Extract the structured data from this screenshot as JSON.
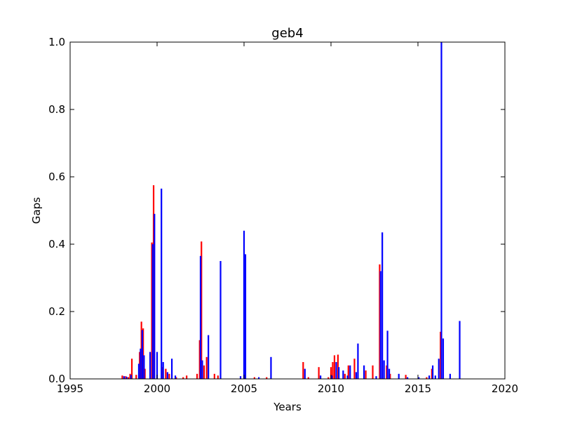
{
  "chart_data": {
    "type": "bar",
    "title": "geb4",
    "xlabel": "Years",
    "ylabel": "Gaps",
    "xlim": [
      1995,
      2020
    ],
    "ylim": [
      0,
      1.0
    ],
    "xticks": [
      "1995",
      "2000",
      "2005",
      "2010",
      "2015",
      "2020"
    ],
    "yticks": [
      "0.0",
      "0.2",
      "0.4",
      "0.6",
      "0.8",
      "1.0"
    ],
    "grid": false,
    "legend": "none",
    "series": [
      {
        "color": "#ff0000",
        "points": [
          {
            "x": 1998.0,
            "y": 0.01
          },
          {
            "x": 1998.2,
            "y": 0.008
          },
          {
            "x": 1998.35,
            "y": 0.005
          },
          {
            "x": 1998.45,
            "y": 0.015
          },
          {
            "x": 1998.55,
            "y": 0.06
          },
          {
            "x": 1998.8,
            "y": 0.012
          },
          {
            "x": 1999.0,
            "y": 0.08
          },
          {
            "x": 1999.1,
            "y": 0.17
          },
          {
            "x": 1999.2,
            "y": 0.15
          },
          {
            "x": 1999.3,
            "y": 0.03
          },
          {
            "x": 1999.7,
            "y": 0.405
          },
          {
            "x": 1999.8,
            "y": 0.575
          },
          {
            "x": 2000.3,
            "y": 0.035
          },
          {
            "x": 2000.5,
            "y": 0.03
          },
          {
            "x": 2000.7,
            "y": 0.015
          },
          {
            "x": 2001.1,
            "y": 0.005
          },
          {
            "x": 2001.5,
            "y": 0.005
          },
          {
            "x": 2001.7,
            "y": 0.01
          },
          {
            "x": 2002.3,
            "y": 0.015
          },
          {
            "x": 2002.45,
            "y": 0.115
          },
          {
            "x": 2002.55,
            "y": 0.408
          },
          {
            "x": 2002.7,
            "y": 0.04
          },
          {
            "x": 2002.85,
            "y": 0.065
          },
          {
            "x": 2003.3,
            "y": 0.015
          },
          {
            "x": 2003.5,
            "y": 0.01
          },
          {
            "x": 2005.6,
            "y": 0.005
          },
          {
            "x": 2006.3,
            "y": 0.005
          },
          {
            "x": 2008.4,
            "y": 0.05
          },
          {
            "x": 2008.7,
            "y": 0.005
          },
          {
            "x": 2009.3,
            "y": 0.035
          },
          {
            "x": 2009.85,
            "y": 0.005
          },
          {
            "x": 2010.0,
            "y": 0.035
          },
          {
            "x": 2010.1,
            "y": 0.05
          },
          {
            "x": 2010.2,
            "y": 0.07
          },
          {
            "x": 2010.4,
            "y": 0.072
          },
          {
            "x": 2010.8,
            "y": 0.015
          },
          {
            "x": 2011.0,
            "y": 0.04
          },
          {
            "x": 2011.35,
            "y": 0.06
          },
          {
            "x": 2012.0,
            "y": 0.025
          },
          {
            "x": 2012.4,
            "y": 0.04
          },
          {
            "x": 2012.8,
            "y": 0.34
          },
          {
            "x": 2013.2,
            "y": 0.04
          },
          {
            "x": 2013.4,
            "y": 0.015
          },
          {
            "x": 2014.3,
            "y": 0.012
          },
          {
            "x": 2015.5,
            "y": 0.005
          },
          {
            "x": 2015.8,
            "y": 0.03
          },
          {
            "x": 2016.3,
            "y": 0.14
          }
        ]
      },
      {
        "color": "#0000ff",
        "points": [
          {
            "x": 1998.1,
            "y": 0.008
          },
          {
            "x": 1998.25,
            "y": 0.006
          },
          {
            "x": 1998.5,
            "y": 0.012
          },
          {
            "x": 1998.95,
            "y": 0.045
          },
          {
            "x": 1999.05,
            "y": 0.09
          },
          {
            "x": 1999.15,
            "y": 0.145
          },
          {
            "x": 1999.25,
            "y": 0.07
          },
          {
            "x": 1999.6,
            "y": 0.08
          },
          {
            "x": 1999.75,
            "y": 0.4
          },
          {
            "x": 1999.85,
            "y": 0.49
          },
          {
            "x": 2000.0,
            "y": 0.08
          },
          {
            "x": 2000.25,
            "y": 0.565
          },
          {
            "x": 2000.35,
            "y": 0.05
          },
          {
            "x": 2000.6,
            "y": 0.02
          },
          {
            "x": 2000.85,
            "y": 0.06
          },
          {
            "x": 2001.05,
            "y": 0.01
          },
          {
            "x": 2002.5,
            "y": 0.365
          },
          {
            "x": 2002.6,
            "y": 0.055
          },
          {
            "x": 2002.95,
            "y": 0.13
          },
          {
            "x": 2003.65,
            "y": 0.35
          },
          {
            "x": 2004.8,
            "y": 0.008
          },
          {
            "x": 2005.0,
            "y": 0.44
          },
          {
            "x": 2005.08,
            "y": 0.37
          },
          {
            "x": 2005.85,
            "y": 0.005
          },
          {
            "x": 2006.55,
            "y": 0.065
          },
          {
            "x": 2008.5,
            "y": 0.03
          },
          {
            "x": 2009.4,
            "y": 0.01
          },
          {
            "x": 2010.05,
            "y": 0.01
          },
          {
            "x": 2010.3,
            "y": 0.05
          },
          {
            "x": 2010.45,
            "y": 0.035
          },
          {
            "x": 2010.7,
            "y": 0.025
          },
          {
            "x": 2010.95,
            "y": 0.01
          },
          {
            "x": 2011.1,
            "y": 0.04
          },
          {
            "x": 2011.45,
            "y": 0.02
          },
          {
            "x": 2011.55,
            "y": 0.105
          },
          {
            "x": 2011.9,
            "y": 0.04
          },
          {
            "x": 2012.6,
            "y": 0.008
          },
          {
            "x": 2012.85,
            "y": 0.32
          },
          {
            "x": 2012.95,
            "y": 0.435
          },
          {
            "x": 2013.05,
            "y": 0.055
          },
          {
            "x": 2013.25,
            "y": 0.143
          },
          {
            "x": 2013.35,
            "y": 0.03
          },
          {
            "x": 2013.9,
            "y": 0.015
          },
          {
            "x": 2014.4,
            "y": 0.005
          },
          {
            "x": 2015.05,
            "y": 0.005
          },
          {
            "x": 2015.65,
            "y": 0.01
          },
          {
            "x": 2015.85,
            "y": 0.04
          },
          {
            "x": 2016.0,
            "y": 0.01
          },
          {
            "x": 2016.2,
            "y": 0.06
          },
          {
            "x": 2016.35,
            "y": 1.0
          },
          {
            "x": 2016.45,
            "y": 0.12
          },
          {
            "x": 2016.85,
            "y": 0.015
          },
          {
            "x": 2017.4,
            "y": 0.172
          }
        ]
      }
    ]
  }
}
